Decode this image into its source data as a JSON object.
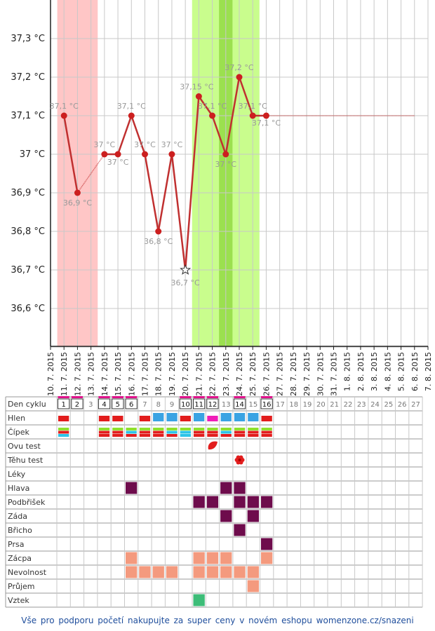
{
  "chart_data": {
    "type": "line",
    "x_dates": [
      "10. 7. 2015",
      "11. 7. 2015",
      "12. 7. 2015",
      "13. 7. 2015",
      "14. 7. 2015",
      "15. 7. 2015",
      "16. 7. 2015",
      "17. 7. 2015",
      "18. 7. 2015",
      "19. 7. 2015",
      "20. 7. 2015",
      "21. 7. 2015",
      "22. 7. 2015",
      "23. 7. 2015",
      "24. 7. 2015",
      "25. 7. 2015",
      "26. 7. 2015",
      "27. 7. 2015",
      "28. 7. 2015",
      "29. 7. 2015",
      "30. 7. 2015",
      "31. 7. 2015",
      "1. 8. 2015",
      "2. 8. 2015",
      "3. 8. 2015",
      "4. 8. 2015",
      "5. 8. 2015",
      "6. 8. 2015",
      "7. 8. 2015"
    ],
    "y_ticks": [
      "37,3 °C",
      "37,2 °C",
      "37,1 °C",
      "37 °C",
      "36,9 °C",
      "36,8 °C",
      "36,7 °C",
      "36,6 °C"
    ],
    "y_tick_values": [
      37.3,
      37.2,
      37.1,
      37.0,
      36.9,
      36.8,
      36.7,
      36.6
    ],
    "ylim": [
      36.5,
      37.4
    ],
    "series": [
      {
        "points": [
          {
            "date": "11. 7. 2015",
            "value": 37.1,
            "label": "37,1 °C"
          },
          {
            "date": "12. 7. 2015",
            "value": 36.9,
            "label": "36,9 °C"
          },
          {
            "date": "14. 7. 2015",
            "value": 37.0,
            "label": "37 °C"
          },
          {
            "date": "15. 7. 2015",
            "value": 37.0,
            "label": "37 °C"
          },
          {
            "date": "16. 7. 2015",
            "value": 37.1,
            "label": "37,1 °C"
          },
          {
            "date": "17. 7. 2015",
            "value": 37.0,
            "label": "37 °C"
          },
          {
            "date": "18. 7. 2015",
            "value": 36.8,
            "label": "36,8 °C"
          },
          {
            "date": "19. 7. 2015",
            "value": 37.0,
            "label": "37 °C"
          },
          {
            "date": "20. 7. 2015",
            "value": 36.7,
            "label": "36,7 °C",
            "marker": "star"
          },
          {
            "date": "21. 7. 2015",
            "value": 37.15,
            "label": "37,15 °C"
          },
          {
            "date": "22. 7. 2015",
            "value": 37.1,
            "label": "37,1 °C"
          },
          {
            "date": "23. 7. 2015",
            "value": 37.0,
            "label": "37 °C"
          },
          {
            "date": "24. 7. 2015",
            "value": 37.2,
            "label": "37,2 °C"
          },
          {
            "date": "25. 7. 2015",
            "value": 37.1,
            "label": "37,1 °C"
          },
          {
            "date": "26. 7. 2015",
            "value": 37.1,
            "label": "37,1 °C"
          }
        ],
        "dotted_segments": [
          [
            "12. 7. 2015",
            "14. 7. 2015"
          ]
        ],
        "projection": {
          "from": "26. 7. 2015",
          "to": "6. 8. 2015",
          "value": 37.1
        }
      }
    ],
    "bands": [
      {
        "kind": "menstruation",
        "from": "11. 7. 2015",
        "to": "13. 7. 2015",
        "color": "#ffc6c6"
      },
      {
        "kind": "fertile",
        "from": "21. 7. 2015",
        "to": "25. 7. 2015",
        "color": "#c9fd8d"
      },
      {
        "kind": "peak",
        "from": "23. 7. 2015",
        "to": "23. 7. 2015",
        "color": "#9be04f"
      }
    ],
    "colors": {
      "line": "#c03030",
      "dot": "#cc1f1f",
      "value_label": "#999999",
      "axis_text": "#222222",
      "grid": "#c8c8c8"
    }
  },
  "symptom_table": {
    "row_labels": [
      "Den cyklu",
      "Hlen",
      "Čípek",
      "Ovu test",
      "Těhu test",
      "Léky",
      "Hlava",
      "Podbřišek",
      "Záda",
      "Břicho",
      "Prsa",
      "Zácpa",
      "Nevolnost",
      "Průjem",
      "Vztek"
    ],
    "day_numbers": [
      "1",
      "2",
      "3",
      "4",
      "5",
      "6",
      "7",
      "8",
      "9",
      "10",
      "11",
      "12",
      "13",
      "14",
      "15",
      "16",
      "17",
      "18",
      "19",
      "20",
      "21",
      "22",
      "23",
      "24",
      "25",
      "26",
      "27"
    ],
    "boxed_days": [
      1,
      2,
      4,
      5,
      6,
      10,
      11,
      12,
      14,
      16
    ],
    "pink_marked_days": [
      1,
      2,
      4,
      5,
      6,
      10,
      11,
      12,
      14,
      16
    ],
    "hlen": [
      {
        "day": 1,
        "color": "#e21d1d"
      },
      {
        "day": 4,
        "color": "#e21d1d"
      },
      {
        "day": 5,
        "color": "#e21d1d"
      },
      {
        "day": 7,
        "color": "#e21d1d"
      },
      {
        "day": 8,
        "color": "#3aa3e3"
      },
      {
        "day": 9,
        "color": "#3aa3e3"
      },
      {
        "day": 10,
        "color": "#e21d1d"
      },
      {
        "day": 11,
        "color": "#3aa3e3"
      },
      {
        "day": 12,
        "color": "#f01db8"
      },
      {
        "day": 13,
        "color": "#3aa3e3"
      },
      {
        "day": 14,
        "color": "#3aa3e3"
      },
      {
        "day": 15,
        "color": "#3aa3e3"
      },
      {
        "day": 16,
        "color": "#e21d1d"
      }
    ],
    "cipek": [
      {
        "day": 1,
        "colors": [
          "#8ee02c",
          "#e21d1d",
          "#2dc4e8"
        ]
      },
      {
        "day": 4,
        "colors": [
          "#8ee02c",
          "#e21d1d",
          "#e21d1d"
        ]
      },
      {
        "day": 5,
        "colors": [
          "#8ee02c",
          "#e21d1d",
          "#e21d1d"
        ]
      },
      {
        "day": 6,
        "colors": [
          "#8ee02c",
          "#2dc4e8",
          "#e21d1d"
        ]
      },
      {
        "day": 7,
        "colors": [
          "#8ee02c",
          "#e21d1d",
          "#e21d1d"
        ]
      },
      {
        "day": 8,
        "colors": [
          "#8ee02c",
          "#e21d1d",
          "#e21d1d"
        ]
      },
      {
        "day": 9,
        "colors": [
          "#8ee02c",
          "#2dc4e8",
          "#e21d1d"
        ]
      },
      {
        "day": 10,
        "colors": [
          "#8ee02c",
          "#2dc4e8",
          "#2dc4e8"
        ]
      },
      {
        "day": 11,
        "colors": [
          "#8ee02c",
          "#e21d1d",
          "#e21d1d"
        ]
      },
      {
        "day": 12,
        "colors": [
          "#8ee02c",
          "#e21d1d",
          "#e21d1d"
        ]
      },
      {
        "day": 13,
        "colors": [
          "#8ee02c",
          "#2dc4e8",
          "#e21d1d"
        ]
      },
      {
        "day": 14,
        "colors": [
          "#8ee02c",
          "#e21d1d",
          "#e21d1d"
        ]
      },
      {
        "day": 15,
        "colors": [
          "#8ee02c",
          "#e21d1d",
          "#e21d1d"
        ]
      },
      {
        "day": 16,
        "colors": [
          "#8ee02c",
          "#e21d1d",
          "#e21d1d"
        ]
      }
    ],
    "ovu_test": [
      {
        "day": 12,
        "icon": "red-leaf-icon"
      }
    ],
    "tehu_test": [
      {
        "day": 14,
        "icon": "red-flower-icon"
      }
    ],
    "cells": {
      "Hlava": {
        "days": [
          6,
          13,
          14
        ],
        "color": "#6e0c4c"
      },
      "Podbřišek": {
        "days": [
          11,
          12,
          14,
          15,
          16
        ],
        "color": "#6e0c4c"
      },
      "Záda": {
        "days": [
          13,
          15
        ],
        "color": "#6e0c4c"
      },
      "Břicho": {
        "days": [
          14
        ],
        "color": "#6e0c4c"
      },
      "Prsa": {
        "days": [
          16
        ],
        "color": "#6e0c4c"
      },
      "Zácpa": {
        "days": [
          6,
          11,
          12,
          13,
          16
        ],
        "color": "#f49a7e"
      },
      "Nevolnost": {
        "days": [
          6,
          7,
          8,
          9,
          11,
          12,
          13,
          14,
          15
        ],
        "color": "#f49a7e"
      },
      "Průjem": {
        "days": [
          15
        ],
        "color": "#f49a7e"
      },
      "Vztek": {
        "days": [
          11
        ],
        "color": "#3dbd78"
      }
    }
  },
  "footer": {
    "text": "Vše pro podporu početí nakupujte za super ceny v novém eshopu womenzone.cz/snazeni"
  }
}
